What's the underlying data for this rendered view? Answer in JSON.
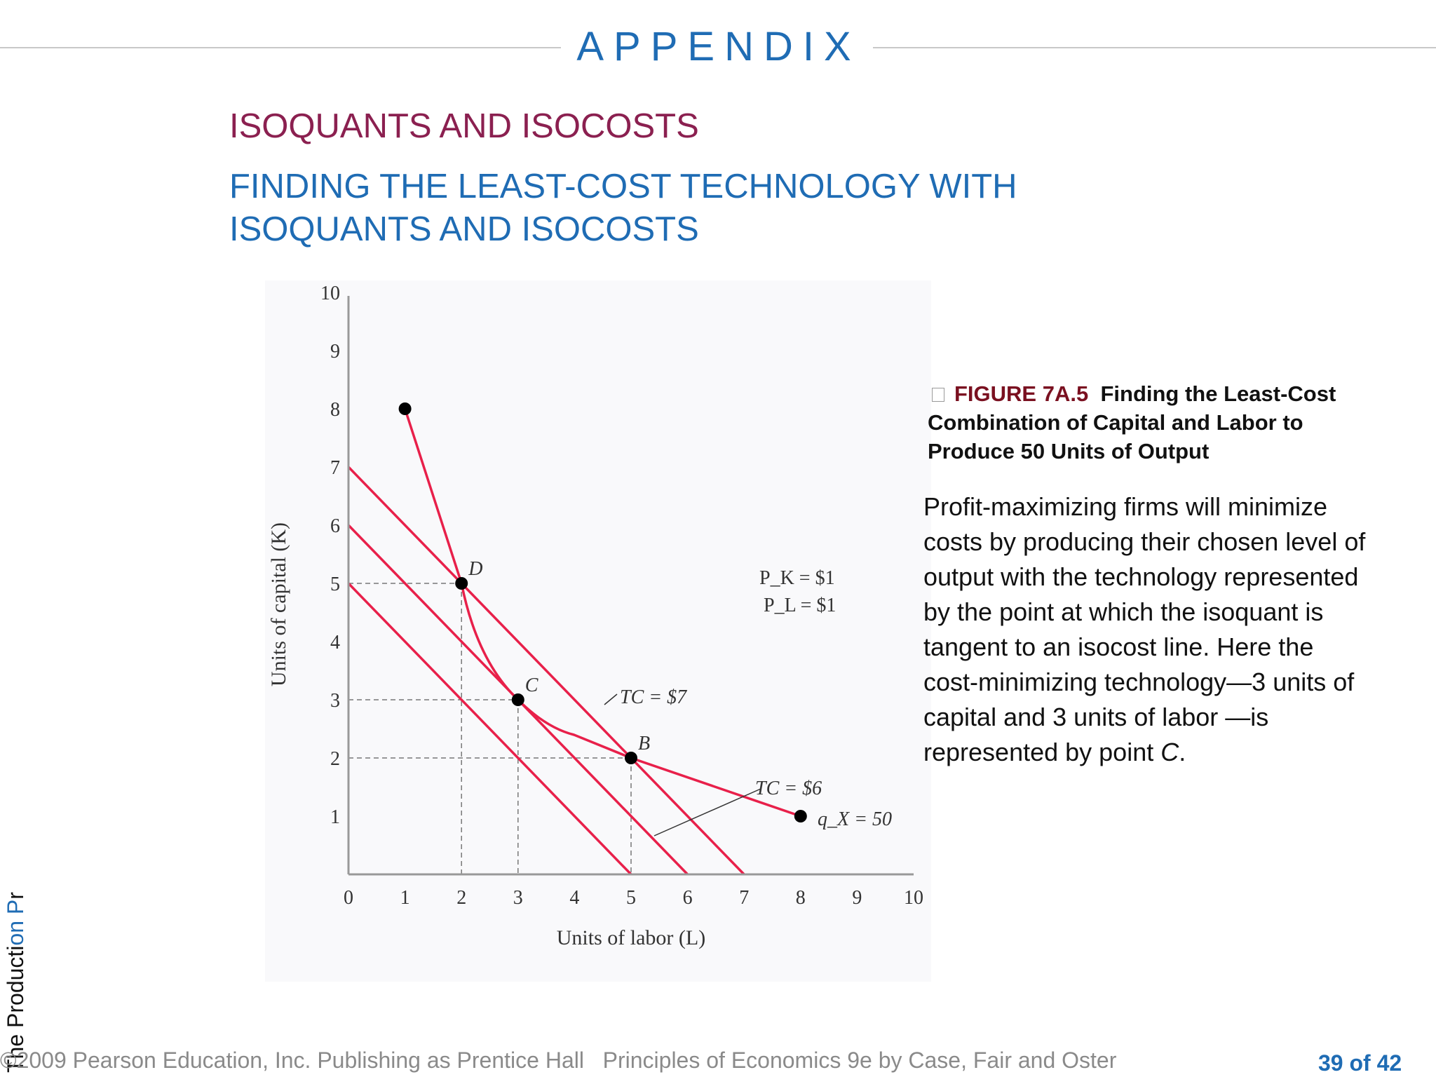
{
  "header": {
    "title": "APPENDIX"
  },
  "section_title": "ISOQUANTS AND ISOCOSTS",
  "subtitle_line1": "FINDING THE LEAST-COST TECHNOLOGY WITH",
  "subtitle_line2": "ISOQUANTS AND ISOCOSTS",
  "caption": {
    "figure_number": "FIGURE 7A.5",
    "figure_title": "Finding the Least-Cost Combination of Capital and Labor to Produce 50 Units of Output"
  },
  "body": {
    "text_before": "Profit-maximizing firms will minimize costs by producing their chosen level of output with the technology represented by the point at which the isoquant is tangent to an isocost line. Here the cost-minimizing technology—3 units of capital and 3 units of labor —is represented by point ",
    "point": "C",
    "text_after": "."
  },
  "sidebar": {
    "vertical_text_a": "The Producti",
    "vertical_text_b": "on P",
    "vertical_text_c": "r"
  },
  "footer": {
    "copyright": "©2009 Pearson Education, Inc. Publishing as Prentice Hall",
    "book": "Principles of Economics 9e by Case, Fair and Oster",
    "page": "39 of 42"
  },
  "chart_data": {
    "type": "line",
    "xlabel": "Units of labor (L)",
    "ylabel": "Units of capital (K)",
    "xlim": [
      0,
      10
    ],
    "ylim": [
      0,
      10
    ],
    "x_ticks": [
      "0",
      "1",
      "2",
      "3",
      "4",
      "5",
      "6",
      "7",
      "8",
      "9",
      "10"
    ],
    "y_ticks": [
      "1",
      "2",
      "3",
      "4",
      "5",
      "6",
      "7",
      "8",
      "9",
      "10"
    ],
    "grid": false,
    "prices": {
      "pk": "P_K = $1",
      "pl": "P_L = $1"
    },
    "isocost_lines": [
      {
        "cost": 5,
        "points": [
          [
            0,
            5
          ],
          [
            5,
            0
          ]
        ]
      },
      {
        "cost": 6,
        "points": [
          [
            0,
            6
          ],
          [
            6,
            0
          ]
        ],
        "label": "TC = $6"
      },
      {
        "cost": 7,
        "points": [
          [
            0,
            7
          ],
          [
            7,
            0
          ]
        ],
        "label": "TC = $7"
      }
    ],
    "isoquant": {
      "label": "q_X = 50",
      "points": [
        [
          1,
          8
        ],
        [
          2,
          5
        ],
        [
          3,
          3
        ],
        [
          5,
          2
        ],
        [
          8,
          1
        ]
      ]
    },
    "labeled_points": [
      {
        "name": "D",
        "x": 2,
        "y": 5
      },
      {
        "name": "C",
        "x": 3,
        "y": 3
      },
      {
        "name": "B",
        "x": 5,
        "y": 2
      }
    ],
    "dashed_guides": [
      [
        2,
        5
      ],
      [
        3,
        3
      ],
      [
        5,
        2
      ]
    ],
    "colors": {
      "curve": "#e8204a",
      "markers": "#000000",
      "guides": "#777777"
    }
  }
}
